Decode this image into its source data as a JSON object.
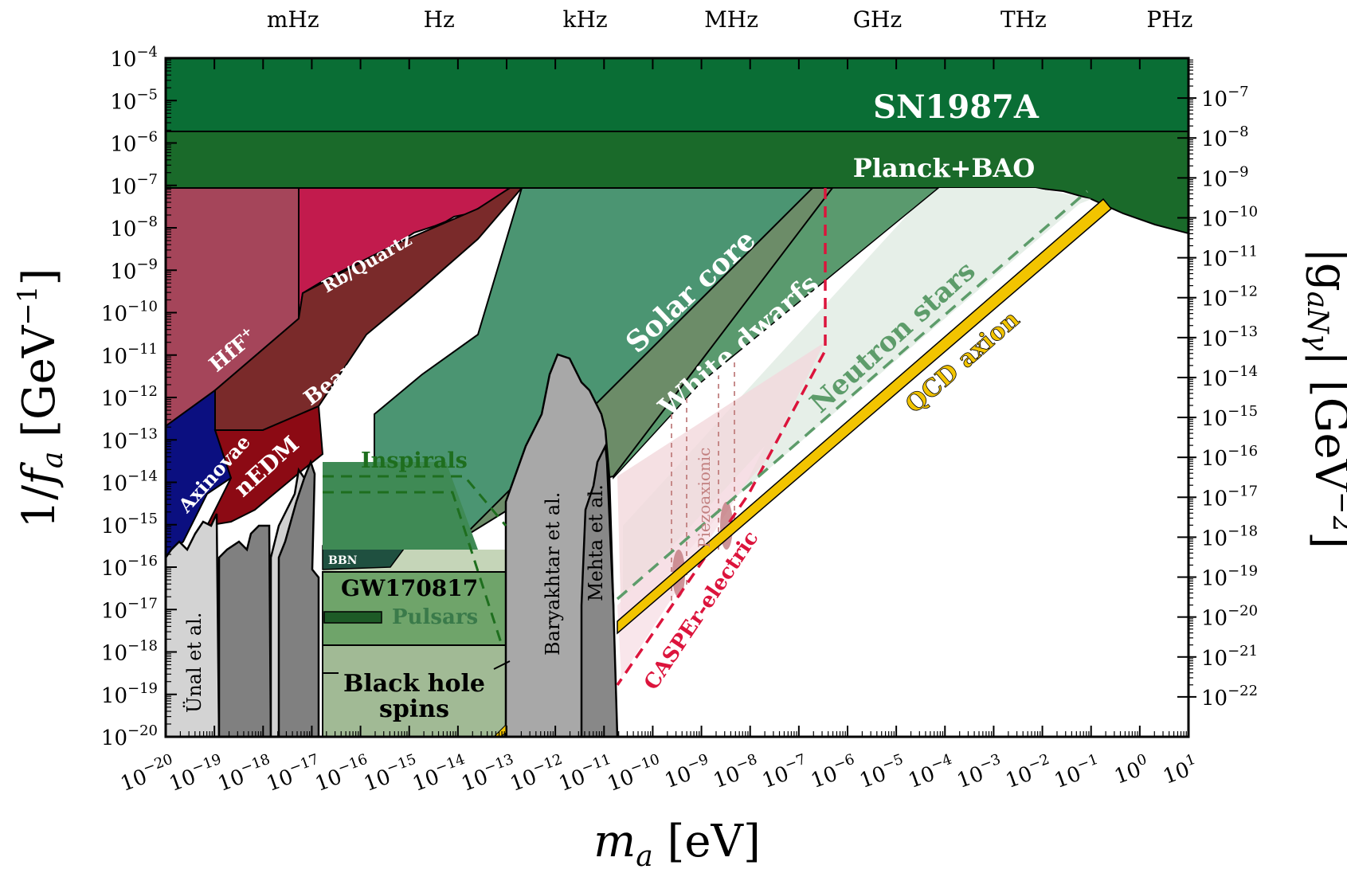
{
  "chart_data": {
    "type": "area",
    "xlabel_main": "m",
    "xlabel_sub": "a",
    "xlabel_unit": " [eV]",
    "ylabel_main": "1/",
    "ylabel_f": "f",
    "ylabel_sub": "a",
    "ylabel_unit": " [GeV",
    "ylabel_exp": "−1",
    "ylabel_close": "]",
    "y2label_main": "|g",
    "y2label_sub": "aNγ",
    "y2label_unit": "| [GeV",
    "y2label_exp": "−2",
    "y2label_close": "]",
    "x_scale": "log",
    "y_scale": "log",
    "xlim": [
      1e-20,
      10
    ],
    "ylim": [
      1e-20,
      0.0001
    ],
    "y2lim": [
      1e-23,
      1e-06
    ],
    "x_tick_exponents": [
      "−20",
      "−19",
      "−18",
      "−17",
      "−16",
      "−15",
      "−14",
      "−13",
      "−12",
      "−11",
      "−10",
      "−9",
      "−8",
      "−7",
      "−6",
      "−5",
      "−4",
      "−3",
      "−2",
      "−1",
      "0",
      "1"
    ],
    "y_tick_exponents": [
      "−20",
      "−19",
      "−18",
      "−17",
      "−16",
      "−15",
      "−14",
      "−13",
      "−12",
      "−11",
      "−10",
      "−9",
      "−8",
      "−7",
      "−6",
      "−5",
      "−4"
    ],
    "y2_tick_exponents": [
      "−22",
      "−21",
      "−20",
      "−19",
      "−18",
      "−17",
      "−16",
      "−15",
      "−14",
      "−13",
      "−12",
      "−11",
      "−10",
      "−9",
      "−8",
      "−7"
    ],
    "frequency_labels": [
      {
        "label": "mHz",
        "mass_eV": 4.1e-18
      },
      {
        "label": "Hz",
        "mass_eV": 4.1e-15
      },
      {
        "label": "kHz",
        "mass_eV": 4.1e-12
      },
      {
        "label": "MHz",
        "mass_eV": 4.1e-09
      },
      {
        "label": "GHz",
        "mass_eV": 4.1e-06
      },
      {
        "label": "THz",
        "mass_eV": 0.0041
      },
      {
        "label": "PHz",
        "mass_eV": 4.1
      }
    ],
    "regions": [
      {
        "name": "SN1987A",
        "label": "SN1987A",
        "color": "#0a6e35",
        "y_range": [
          2e-06,
          0.0001
        ]
      },
      {
        "name": "Planck+BAO",
        "label": "Planck+BAO",
        "color": "#1a6a2a"
      },
      {
        "name": "Solar core",
        "label": "Solar core",
        "color": "#4a9470"
      },
      {
        "name": "White dwarfs",
        "label": "White dwarfs",
        "color": "#6b8a6a"
      },
      {
        "name": "Neutron stars",
        "label": "Neutron stars",
        "color": "#5d9c6a"
      },
      {
        "name": "Inspirals",
        "label": "Inspirals",
        "color": "#1e6e1e"
      },
      {
        "name": "GW170817",
        "label": "GW170817",
        "color": "#000000"
      },
      {
        "name": "Pulsars",
        "label": "Pulsars",
        "color": "#3a7a4a"
      },
      {
        "name": "BBN",
        "label": "BBN",
        "color": "#1f5040"
      },
      {
        "name": "Black hole spins",
        "label_line1": "Black hole",
        "label_line2": "spins",
        "color": "#9fb893"
      },
      {
        "name": "HfF+",
        "label": "HfF",
        "label_sup": "+",
        "color": "#a5455a"
      },
      {
        "name": "Rb/Quartz",
        "label": "Rb/Quartz",
        "color": "#c21b4d"
      },
      {
        "name": "Beam EDM",
        "label": "Beam EDM",
        "color": "#7a2a2a"
      },
      {
        "name": "Axinovae",
        "label": "Axinovae",
        "color": "#0b0f80"
      },
      {
        "name": "nEDM",
        "label": "nEDM",
        "color": "#8c0a14"
      },
      {
        "name": "Ünal et al.",
        "label": "Ünal et al.",
        "color": "#d3d3d3"
      },
      {
        "name": "Baryakhtar et al.",
        "label": "Baryakhtar et al.",
        "color": "#a8a8a8"
      },
      {
        "name": "Mehta et al.",
        "label": "Mehta et al.",
        "color": "#888888"
      },
      {
        "name": "Piezoaxionic",
        "label": "Piezoaxionic",
        "color": "#c28080"
      },
      {
        "name": "CASPEr-electric",
        "label": "CASPEr-electric",
        "color": "#dc143c"
      },
      {
        "name": "QCD axion",
        "label": "QCD axion",
        "color": "#f2c400"
      }
    ]
  }
}
